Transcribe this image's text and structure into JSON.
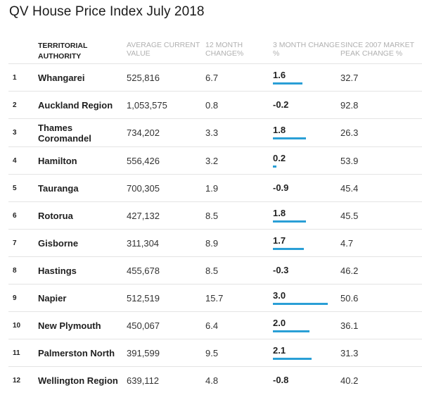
{
  "title": "QV House Price Index July 2018",
  "headers": {
    "authority": "TERRITORIAL AUTHORITY",
    "value": "AVERAGE CURRENT VALUE",
    "change12": "12 MONTH CHANGE%",
    "change3": "3 MONTH CHANGE %",
    "peak": "SINCE 2007 MARKET PEAK CHANGE %"
  },
  "rows": [
    {
      "rank": "1",
      "name": "Whangarei",
      "value": "525,816",
      "change12": "6.7",
      "change3": "1.6",
      "peak": "32.7"
    },
    {
      "rank": "2",
      "name": "Auckland Region",
      "value": "1,053,575",
      "change12": "0.8",
      "change3": "-0.2",
      "peak": "92.8"
    },
    {
      "rank": "3",
      "name": "Thames Coromandel",
      "value": "734,202",
      "change12": "3.3",
      "change3": "1.8",
      "peak": "26.3"
    },
    {
      "rank": "4",
      "name": "Hamilton",
      "value": "556,426",
      "change12": "3.2",
      "change3": "0.2",
      "peak": "53.9"
    },
    {
      "rank": "5",
      "name": "Tauranga",
      "value": "700,305",
      "change12": "1.9",
      "change3": "-0.9",
      "peak": "45.4"
    },
    {
      "rank": "6",
      "name": "Rotorua",
      "value": "427,132",
      "change12": "8.5",
      "change3": "1.8",
      "peak": "45.5"
    },
    {
      "rank": "7",
      "name": "Gisborne",
      "value": "311,304",
      "change12": "8.9",
      "change3": "1.7",
      "peak": "4.7"
    },
    {
      "rank": "8",
      "name": "Hastings",
      "value": "455,678",
      "change12": "8.5",
      "change3": "-0.3",
      "peak": "46.2"
    },
    {
      "rank": "9",
      "name": "Napier",
      "value": "512,519",
      "change12": "15.7",
      "change3": "3.0",
      "peak": "50.6"
    },
    {
      "rank": "10",
      "name": "New Plymouth",
      "value": "450,067",
      "change12": "6.4",
      "change3": "2.0",
      "peak": "36.1"
    },
    {
      "rank": "11",
      "name": "Palmerston North",
      "value": "391,599",
      "change12": "9.5",
      "change3": "2.1",
      "peak": "31.3"
    },
    {
      "rank": "12",
      "name": "Wellington Region",
      "value": "639,112",
      "change12": "4.8",
      "change3": "-0.8",
      "peak": "40.2"
    }
  ],
  "chart_data": {
    "type": "table",
    "title": "QV House Price Index July 2018",
    "columns": [
      "TERRITORIAL AUTHORITY",
      "AVERAGE CURRENT VALUE",
      "12 MONTH CHANGE%",
      "3 MONTH CHANGE %",
      "SINCE 2007 MARKET PEAK CHANGE %"
    ],
    "categories": [
      "Whangarei",
      "Auckland Region",
      "Thames Coromandel",
      "Hamilton",
      "Tauranga",
      "Rotorua",
      "Gisborne",
      "Hastings",
      "Napier",
      "New Plymouth",
      "Palmerston North",
      "Wellington Region"
    ],
    "series": [
      {
        "values": [
          525816,
          1053575,
          734202,
          556426,
          700305,
          427132,
          311304,
          455678,
          512519,
          450067,
          391599,
          639112
        ]
      },
      {
        "values": [
          6.7,
          0.8,
          3.3,
          3.2,
          1.9,
          8.5,
          8.9,
          8.5,
          15.7,
          6.4,
          9.5,
          4.8
        ]
      },
      {
        "values": [
          1.6,
          -0.2,
          1.8,
          0.2,
          -0.9,
          1.8,
          1.7,
          -0.3,
          3.0,
          2.0,
          2.1,
          -0.8
        ]
      },
      {
        "values": [
          32.7,
          92.8,
          26.3,
          53.9,
          45.4,
          45.5,
          4.7,
          46.2,
          50.6,
          36.1,
          31.3,
          40.2
        ]
      }
    ],
    "bar_color": "#2a9fd6"
  }
}
